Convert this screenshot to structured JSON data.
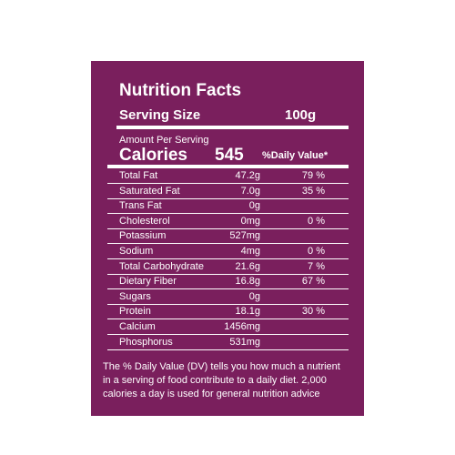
{
  "label": {
    "title": "Nutrition Facts",
    "serving_label": "Serving Size",
    "serving_value": "100g",
    "amount_per_serving": "Amount Per Serving",
    "calories_label": "Calories",
    "calories_value": "545",
    "daily_value_header": "%Daily Value*",
    "rows": [
      {
        "name": "Total Fat",
        "amount": "47.2g",
        "dv": "79 %"
      },
      {
        "name": "Saturated Fat",
        "amount": "7.0g",
        "dv": "35 %"
      },
      {
        "name": "Trans Fat",
        "amount": "0g"
      },
      {
        "name": "Cholesterol",
        "amount": "0mg",
        "dv": "0 %"
      },
      {
        "name": "Potassium",
        "amount": "527mg"
      },
      {
        "name": "Sodium",
        "amount": "4mg",
        "dv": "0 %"
      },
      {
        "name": "Total Carbohydrate",
        "amount": "21.6g",
        "dv": "7 %"
      },
      {
        "name": "Dietary Fiber",
        "amount": "16.8g",
        "dv": "67 %"
      },
      {
        "name": "Sugars",
        "amount": "0g"
      },
      {
        "name": "Protein",
        "amount": "18.1g",
        "dv": "30 %"
      },
      {
        "name": "Calcium",
        "amount": "1456mg"
      },
      {
        "name": "Phosphorus",
        "amount": "531mg"
      }
    ],
    "footnote": [
      "The % Daily Value (DV) tells you how much a nutrient",
      "in a serving of food contribute to a daily diet. 2,000",
      "calories a day is used for general nutrition advice"
    ]
  }
}
